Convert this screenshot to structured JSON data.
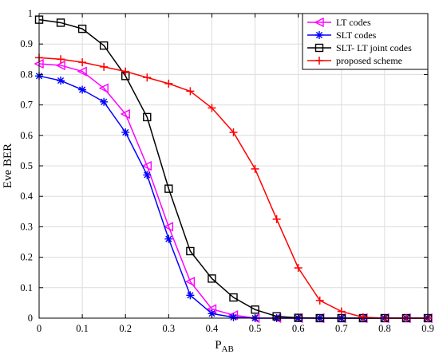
{
  "chart_data": {
    "type": "line",
    "xlabel": "P",
    "xlabel_subscript": "AB",
    "ylabel": "Eve BER",
    "xlim": [
      0,
      0.9
    ],
    "ylim": [
      0,
      1
    ],
    "xticks": [
      "0",
      "0.1",
      "0.2",
      "0.3",
      "0.4",
      "0.5",
      "0.6",
      "0.7",
      "0.8",
      "0.9"
    ],
    "yticks": [
      "0",
      "0.1",
      "0.2",
      "0.3",
      "0.4",
      "0.5",
      "0.6",
      "0.7",
      "0.8",
      "0.9",
      "1"
    ],
    "grid": true,
    "legend_position": "top-right",
    "x": [
      0,
      0.05,
      0.1,
      0.15,
      0.2,
      0.25,
      0.3,
      0.35,
      0.4,
      0.45,
      0.5,
      0.55,
      0.6,
      0.65,
      0.7,
      0.75,
      0.8,
      0.85,
      0.9
    ],
    "series": [
      {
        "name": "LT codes",
        "color": "#ff00ff",
        "marker": "triangle-left",
        "values": [
          0.835,
          0.83,
          0.81,
          0.755,
          0.67,
          0.5,
          0.3,
          0.12,
          0.03,
          0.01,
          0.0,
          0,
          0,
          0,
          0,
          0,
          0,
          0,
          0
        ]
      },
      {
        "name": "SLT codes",
        "color": "#0000ff",
        "marker": "asterisk",
        "values": [
          0.795,
          0.78,
          0.75,
          0.71,
          0.61,
          0.47,
          0.26,
          0.075,
          0.015,
          0.003,
          0,
          0,
          0,
          0,
          0,
          0,
          0,
          0,
          0
        ]
      },
      {
        "name": "SLT- LT joint codes",
        "color": "#000000",
        "marker": "square",
        "values": [
          0.98,
          0.97,
          0.95,
          0.895,
          0.795,
          0.66,
          0.425,
          0.22,
          0.13,
          0.068,
          0.028,
          0.006,
          0.001,
          0,
          0,
          0,
          0,
          0,
          0
        ]
      },
      {
        "name": "proposed scheme",
        "color": "#ff0000",
        "marker": "plus",
        "values": [
          0.855,
          0.85,
          0.84,
          0.825,
          0.81,
          0.79,
          0.77,
          0.745,
          0.69,
          0.61,
          0.49,
          0.325,
          0.165,
          0.058,
          0.022,
          0.003,
          0,
          0,
          0
        ]
      }
    ]
  }
}
